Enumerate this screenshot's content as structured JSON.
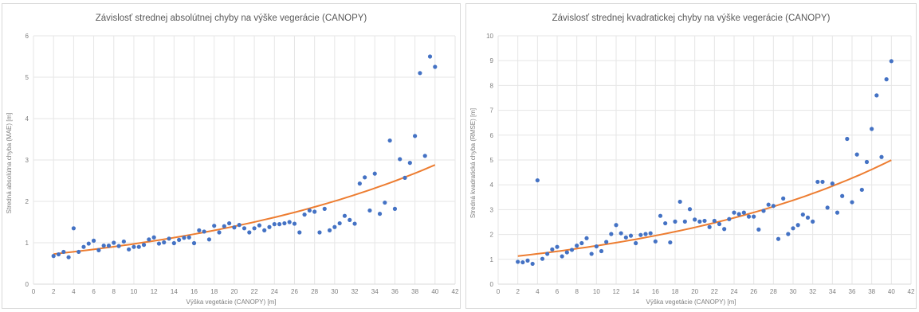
{
  "colors": {
    "points": "#4472c4",
    "trend": "#ed7d31",
    "grid": "#e6e6e6",
    "axis": "#d9d9d9"
  },
  "chart_data": [
    {
      "type": "scatter",
      "title": "Závislosť strednej absolútnej chyby na výške vegerácie (CANOPY)",
      "xlabel": "Výška vegetácie (CANOPY) [m]",
      "ylabel": "Stredná absolútna chyba (MAE) [m]",
      "xlim": [
        0,
        42
      ],
      "ylim": [
        0,
        6
      ],
      "xticks": [
        0,
        2,
        4,
        6,
        8,
        10,
        12,
        14,
        16,
        18,
        20,
        22,
        24,
        26,
        28,
        30,
        32,
        34,
        36,
        38,
        40,
        42
      ],
      "yticks": [
        0,
        1,
        2,
        3,
        4,
        5,
        6
      ],
      "grid": true,
      "trendline": {
        "type": "exponential",
        "a": 0.677,
        "b": 0.0362
      },
      "x": [
        2,
        2.5,
        3,
        3.5,
        4,
        4.5,
        5,
        5.5,
        6,
        6.5,
        7,
        7.5,
        8,
        8.5,
        9,
        9.5,
        10,
        10.5,
        11,
        11.5,
        12,
        12.5,
        13,
        13.5,
        14,
        14.5,
        15,
        15.5,
        16,
        16.5,
        17,
        17.5,
        18,
        18.5,
        19,
        19.5,
        20,
        20.5,
        21,
        21.5,
        22,
        22.5,
        23,
        23.5,
        24,
        24.5,
        25,
        25.5,
        26,
        26.5,
        27,
        27.5,
        28,
        28.5,
        29,
        29.5,
        30,
        30.5,
        31,
        31.5,
        32,
        32.5,
        33,
        33.5,
        34,
        34.5,
        35,
        35.5,
        36,
        36.5,
        37,
        37.5,
        38,
        38.5,
        39,
        39.5,
        40
      ],
      "y": [
        0.68,
        0.72,
        0.78,
        0.65,
        1.35,
        0.78,
        0.9,
        0.98,
        1.05,
        0.82,
        0.93,
        0.93,
        1.0,
        0.92,
        1.03,
        0.84,
        0.9,
        0.9,
        0.95,
        1.08,
        1.13,
        0.98,
        1.01,
        1.1,
        0.99,
        1.07,
        1.12,
        1.13,
        0.99,
        1.3,
        1.27,
        1.08,
        1.41,
        1.25,
        1.4,
        1.47,
        1.37,
        1.43,
        1.35,
        1.25,
        1.35,
        1.42,
        1.3,
        1.38,
        1.45,
        1.45,
        1.47,
        1.5,
        1.46,
        1.25,
        1.68,
        1.78,
        1.75,
        1.25,
        1.82,
        1.3,
        1.38,
        1.47,
        1.65,
        1.55,
        1.46,
        2.43,
        2.58,
        1.78,
        2.67,
        1.7,
        1.97,
        3.47,
        1.82,
        3.02,
        2.57,
        2.93,
        3.58,
        5.1,
        3.1,
        5.5,
        5.25
      ]
    },
    {
      "type": "scatter",
      "title": "Závislosť strednej kvadratickej chyby na výške vegerácie (CANOPY)",
      "xlabel": "Výška vegetácie (CANOPY) [m]",
      "ylabel": "Stredná kvadratická chyba (RMSE) [m]",
      "xlim": [
        0,
        42
      ],
      "ylim": [
        0,
        10
      ],
      "xticks": [
        0,
        2,
        4,
        6,
        8,
        10,
        12,
        14,
        16,
        18,
        20,
        22,
        24,
        26,
        28,
        30,
        32,
        34,
        36,
        38,
        40,
        42
      ],
      "yticks": [
        0,
        1,
        2,
        3,
        4,
        5,
        6,
        7,
        8,
        9,
        10
      ],
      "grid": true,
      "trendline": {
        "type": "exponential",
        "a": 1.045,
        "b": 0.0391
      },
      "x": [
        2,
        2.5,
        3,
        3.5,
        4,
        4.5,
        5,
        5.5,
        6,
        6.5,
        7,
        7.5,
        8,
        8.5,
        9,
        9.5,
        10,
        10.5,
        11,
        11.5,
        12,
        12.5,
        13,
        13.5,
        14,
        14.5,
        15,
        15.5,
        16,
        16.5,
        17,
        17.5,
        18,
        18.5,
        19,
        19.5,
        20,
        20.5,
        21,
        21.5,
        22,
        22.5,
        23,
        23.5,
        24,
        24.5,
        25,
        25.5,
        26,
        26.5,
        27,
        27.5,
        28,
        28.5,
        29,
        29.5,
        30,
        30.5,
        31,
        31.5,
        32,
        32.5,
        33,
        33.5,
        34,
        34.5,
        35,
        35.5,
        36,
        36.5,
        37,
        37.5,
        38,
        38.5,
        39,
        39.5,
        40
      ],
      "y": [
        0.9,
        0.88,
        0.95,
        0.82,
        4.18,
        1.02,
        1.22,
        1.4,
        1.5,
        1.12,
        1.28,
        1.38,
        1.55,
        1.65,
        1.85,
        1.22,
        1.52,
        1.33,
        1.7,
        2.02,
        2.38,
        2.05,
        1.88,
        1.95,
        1.65,
        1.98,
        2.02,
        2.05,
        1.72,
        2.75,
        2.45,
        1.68,
        2.52,
        3.32,
        2.52,
        3.02,
        2.6,
        2.52,
        2.55,
        2.3,
        2.55,
        2.42,
        2.22,
        2.62,
        2.88,
        2.82,
        2.88,
        2.72,
        2.72,
        2.2,
        2.95,
        3.2,
        3.15,
        1.82,
        3.45,
        2.02,
        2.25,
        2.38,
        2.8,
        2.68,
        2.52,
        4.12,
        4.12,
        3.08,
        4.05,
        2.88,
        3.55,
        5.85,
        3.3,
        5.22,
        3.8,
        4.92,
        6.25,
        7.6,
        5.12,
        8.25,
        8.98
      ]
    }
  ]
}
